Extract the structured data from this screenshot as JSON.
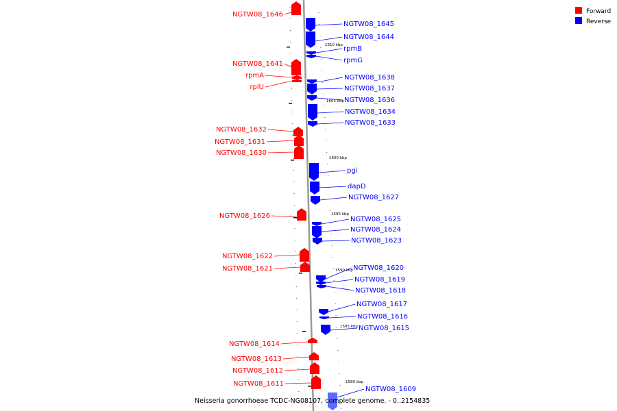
{
  "legend": {
    "items": [
      {
        "label": "Forward",
        "color": "#ff0000"
      },
      {
        "label": "Reverse",
        "color": "#0000ff"
      }
    ]
  },
  "caption": "Neisseria gonorrhoeae TCDC-NG08107, complete genome. - 0..2154835",
  "colors": {
    "forward": "#ff0000",
    "reverse": "#0000ff",
    "backbone": "#9a9a9a"
  },
  "ticks": [
    "1610 kbp",
    "1605 kbp",
    "1600 kbp",
    "1595 kbp",
    "1590 kbp",
    "1585 kbp",
    "1580 kbp"
  ],
  "forward_genes": [
    {
      "label": "NGTW08_1646"
    },
    {
      "label": "NGTW08_1641"
    },
    {
      "label": "rpmA"
    },
    {
      "label": "rplU"
    },
    {
      "label": "NGTW08_1632"
    },
    {
      "label": "NGTW08_1631"
    },
    {
      "label": "NGTW08_1630"
    },
    {
      "label": "NGTW08_1626"
    },
    {
      "label": "NGTW08_1622"
    },
    {
      "label": "NGTW08_1621"
    },
    {
      "label": "NGTW08_1614"
    },
    {
      "label": "NGTW08_1613"
    },
    {
      "label": "NGTW08_1612"
    },
    {
      "label": "NGTW08_1611"
    }
  ],
  "reverse_genes": [
    {
      "label": "NGTW08_1645"
    },
    {
      "label": "NGTW08_1644"
    },
    {
      "label": "rpmB"
    },
    {
      "label": "rpmG"
    },
    {
      "label": "NGTW08_1638"
    },
    {
      "label": "NGTW08_1637"
    },
    {
      "label": "NGTW08_1636"
    },
    {
      "label": "NGTW08_1634"
    },
    {
      "label": "NGTW08_1633"
    },
    {
      "label": "pgi"
    },
    {
      "label": "dapD"
    },
    {
      "label": "NGTW08_1627"
    },
    {
      "label": "NGTW08_1625"
    },
    {
      "label": "NGTW08_1624"
    },
    {
      "label": "NGTW08_1623"
    },
    {
      "label": "NGTW08_1620"
    },
    {
      "label": "NGTW08_1619"
    },
    {
      "label": "NGTW08_1618"
    },
    {
      "label": "NGTW08_1617"
    },
    {
      "label": "NGTW08_1616"
    },
    {
      "label": "NGTW08_1615"
    },
    {
      "label": "NGTW08_1609"
    }
  ]
}
